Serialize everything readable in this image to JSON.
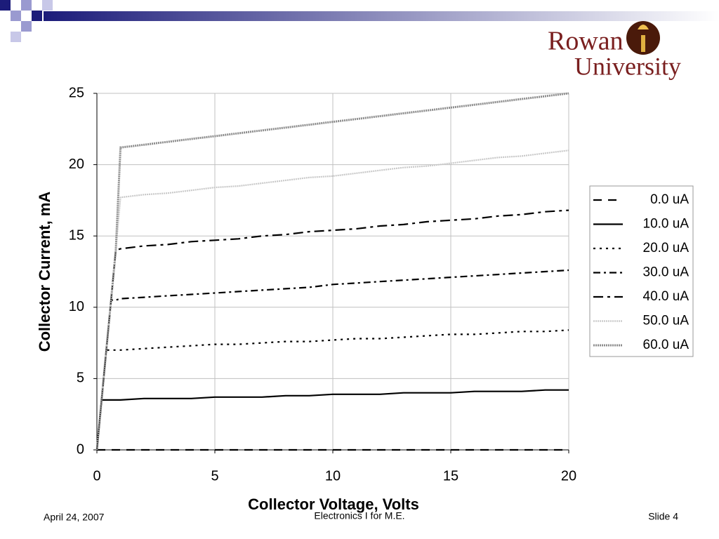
{
  "chart_data": {
    "type": "line",
    "x_label": "Collector Voltage, Volts",
    "y_label": "Collector Current, mA",
    "x": [
      0,
      0.2,
      0.4,
      0.6,
      0.8,
      1,
      2,
      3,
      4,
      5,
      6,
      7,
      8,
      9,
      10,
      11,
      12,
      13,
      14,
      15,
      16,
      17,
      18,
      19,
      20
    ],
    "series": [
      {
        "name": "0.0 uA",
        "color": "#000000",
        "dash": "12,9",
        "values": [
          0,
          0,
          0,
          0,
          0,
          0,
          0,
          0,
          0,
          0,
          0,
          0,
          0,
          0,
          0,
          0,
          0,
          0,
          0,
          0,
          0,
          0,
          0,
          0,
          0
        ]
      },
      {
        "name": "10.0 uA",
        "color": "#000000",
        "dash": "none",
        "values": [
          0,
          3.5,
          3.5,
          3.5,
          3.5,
          3.5,
          3.6,
          3.6,
          3.6,
          3.7,
          3.7,
          3.7,
          3.8,
          3.8,
          3.9,
          3.9,
          3.9,
          4.0,
          4.0,
          4.0,
          4.1,
          4.1,
          4.1,
          4.2,
          4.2
        ]
      },
      {
        "name": "20.0 uA",
        "color": "#000000",
        "dash": "3,6",
        "values": [
          0,
          3.5,
          7,
          7,
          7,
          7,
          7.1,
          7.2,
          7.3,
          7.4,
          7.4,
          7.5,
          7.6,
          7.6,
          7.7,
          7.8,
          7.8,
          7.9,
          8.0,
          8.1,
          8.1,
          8.2,
          8.3,
          8.3,
          8.4
        ]
      },
      {
        "name": "30.0 uA",
        "color": "#000000",
        "dash": "10,5,3,5",
        "values": [
          0,
          3.5,
          7,
          10.5,
          10.5,
          10.6,
          10.7,
          10.8,
          10.9,
          11.0,
          11.1,
          11.2,
          11.3,
          11.4,
          11.6,
          11.7,
          11.8,
          11.9,
          12.0,
          12.1,
          12.2,
          12.3,
          12.4,
          12.5,
          12.6
        ]
      },
      {
        "name": "40.0 uA",
        "color": "#000000",
        "dash": "14,6,4,6",
        "values": [
          0,
          3.5,
          7,
          10.5,
          14,
          14.1,
          14.3,
          14.4,
          14.6,
          14.7,
          14.8,
          15.0,
          15.1,
          15.3,
          15.4,
          15.5,
          15.7,
          15.8,
          16.0,
          16.1,
          16.2,
          16.4,
          16.5,
          16.7,
          16.8
        ]
      },
      {
        "name": "50.0 uA",
        "color": "#c8c8c8",
        "dash": "2,1",
        "values": [
          0,
          3.5,
          7,
          10.5,
          14,
          17.7,
          17.9,
          18.0,
          18.2,
          18.4,
          18.5,
          18.7,
          18.9,
          19.1,
          19.2,
          19.4,
          19.6,
          19.8,
          19.9,
          20.1,
          20.3,
          20.5,
          20.6,
          20.8,
          21.0
        ]
      },
      {
        "name": "60.0 uA",
        "color": "#8c8c8c",
        "dash": "2,1",
        "values": [
          0,
          3.5,
          7,
          10.5,
          14,
          21.2,
          21.4,
          21.6,
          21.8,
          22.0,
          22.2,
          22.4,
          22.6,
          22.8,
          23.0,
          23.2,
          23.4,
          23.6,
          23.8,
          24.0,
          24.2,
          24.4,
          24.6,
          24.8,
          25.0
        ]
      }
    ],
    "xlim": [
      0,
      20
    ],
    "xticks": [
      0,
      5,
      10,
      15,
      20
    ],
    "ylim": [
      0,
      25
    ],
    "yticks": [
      0,
      5,
      10,
      15,
      20,
      25
    ],
    "grid": true,
    "legend": "right"
  },
  "logo": {
    "line1": "Rowan",
    "line2": "University"
  },
  "footer": {
    "date": "April 24, 2007",
    "course": "Electronics I for M.E.",
    "slide": "Slide 4"
  }
}
